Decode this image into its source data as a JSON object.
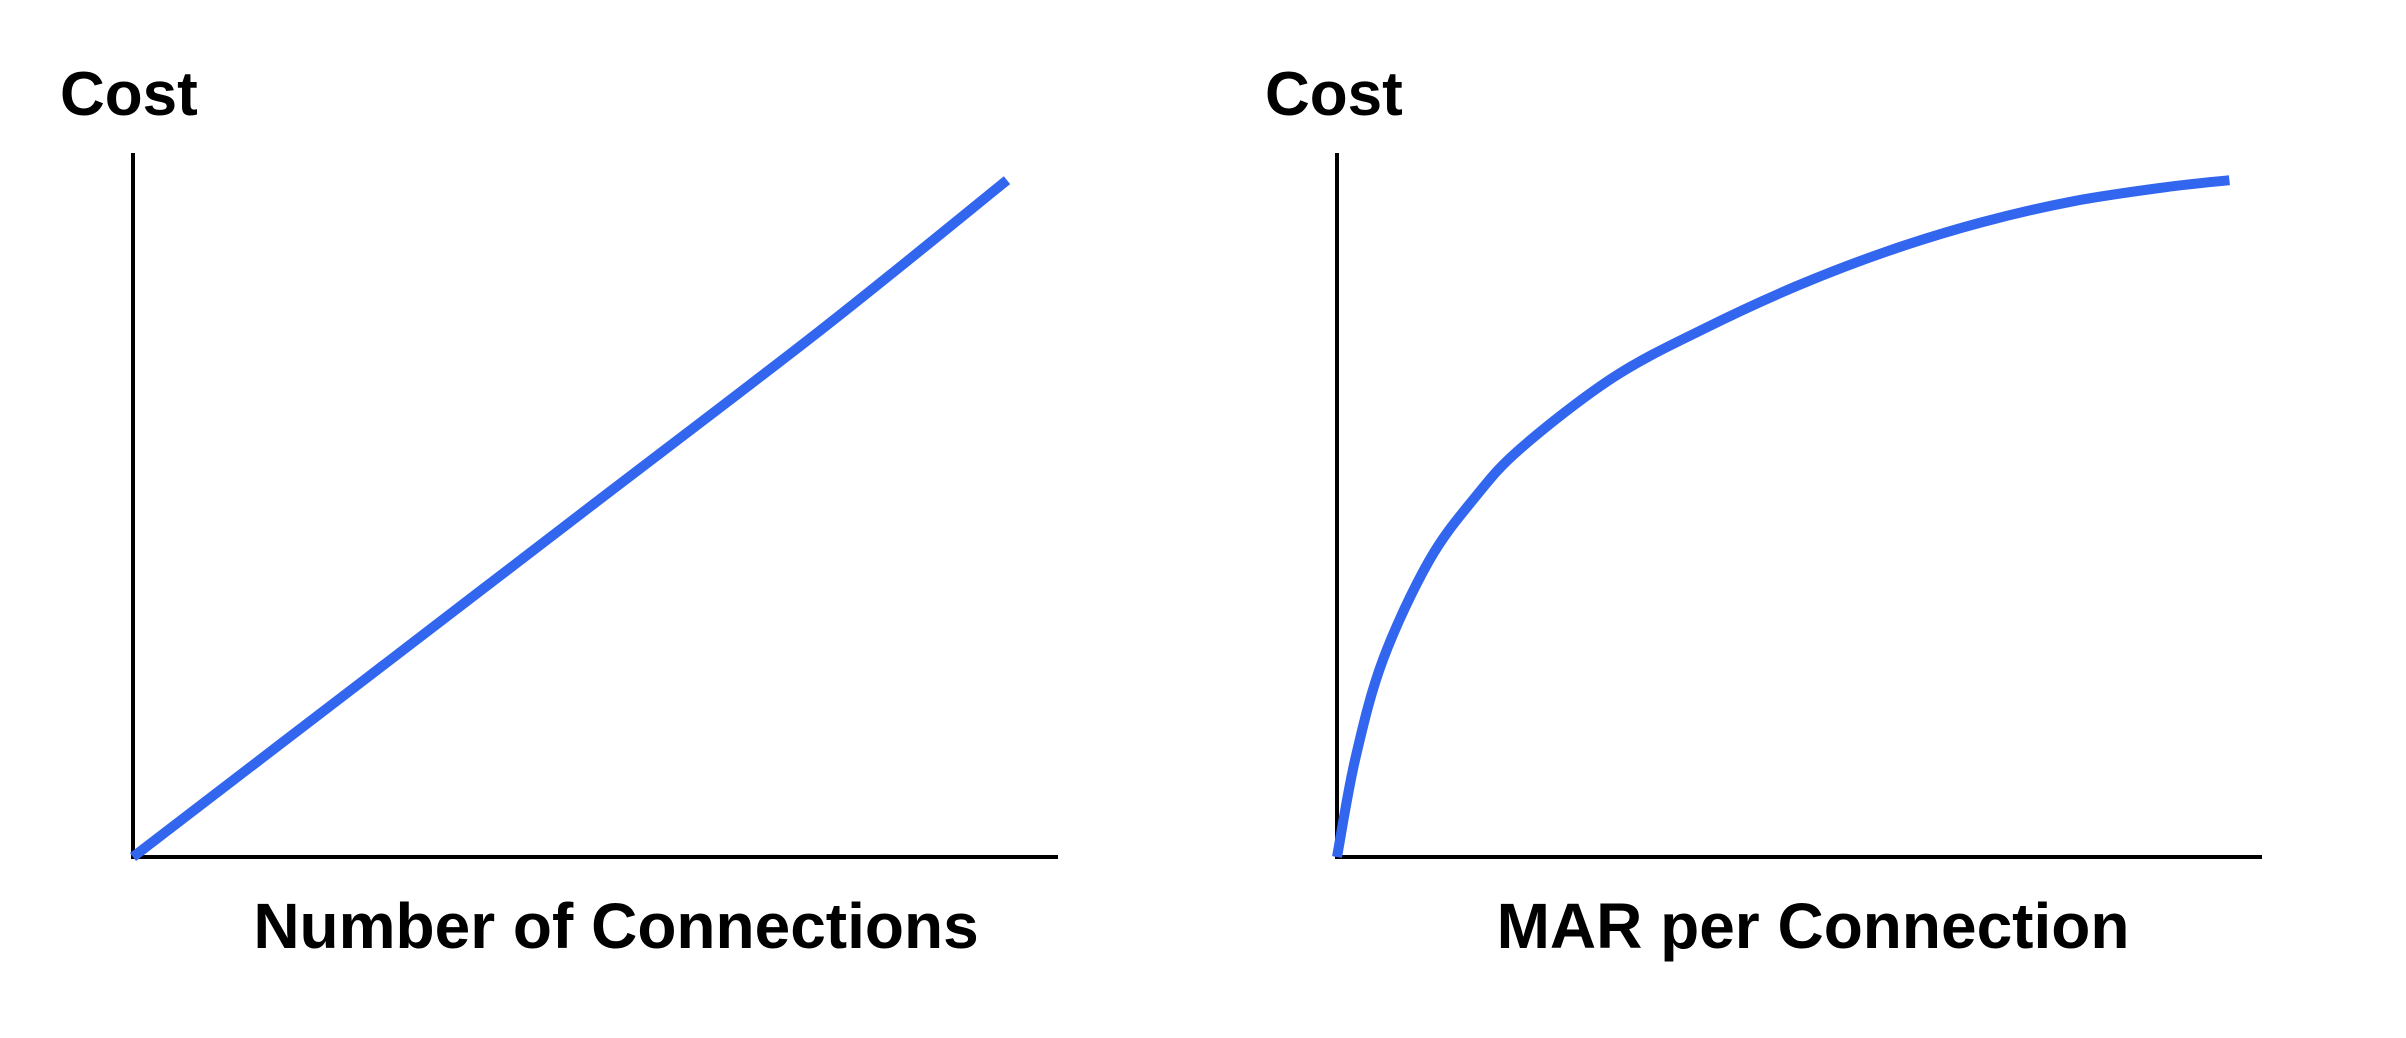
{
  "chart_data": [
    {
      "type": "line",
      "title": "",
      "xlabel": "Number of Connections",
      "ylabel": "Cost",
      "xlim": [
        0,
        1
      ],
      "ylim": [
        0,
        1
      ],
      "grid": false,
      "series": [
        {
          "color": "#3366ee",
          "x": [
            0,
            0.25,
            0.5,
            0.75,
            0.95
          ],
          "y": [
            0,
            0.25,
            0.5,
            0.75,
            0.96
          ]
        }
      ]
    },
    {
      "type": "line",
      "title": "",
      "xlabel": "MAR per Connection",
      "ylabel": "Cost",
      "xlim": [
        0,
        1
      ],
      "ylim": [
        0,
        1
      ],
      "grid": false,
      "series": [
        {
          "color": "#3366ee",
          "x": [
            0,
            0.02,
            0.05,
            0.1,
            0.15,
            0.2,
            0.3,
            0.4,
            0.5,
            0.6,
            0.7,
            0.8,
            0.9,
            0.97
          ],
          "y": [
            0,
            0.14,
            0.28,
            0.42,
            0.51,
            0.58,
            0.68,
            0.75,
            0.81,
            0.86,
            0.9,
            0.93,
            0.95,
            0.96
          ]
        }
      ]
    }
  ]
}
